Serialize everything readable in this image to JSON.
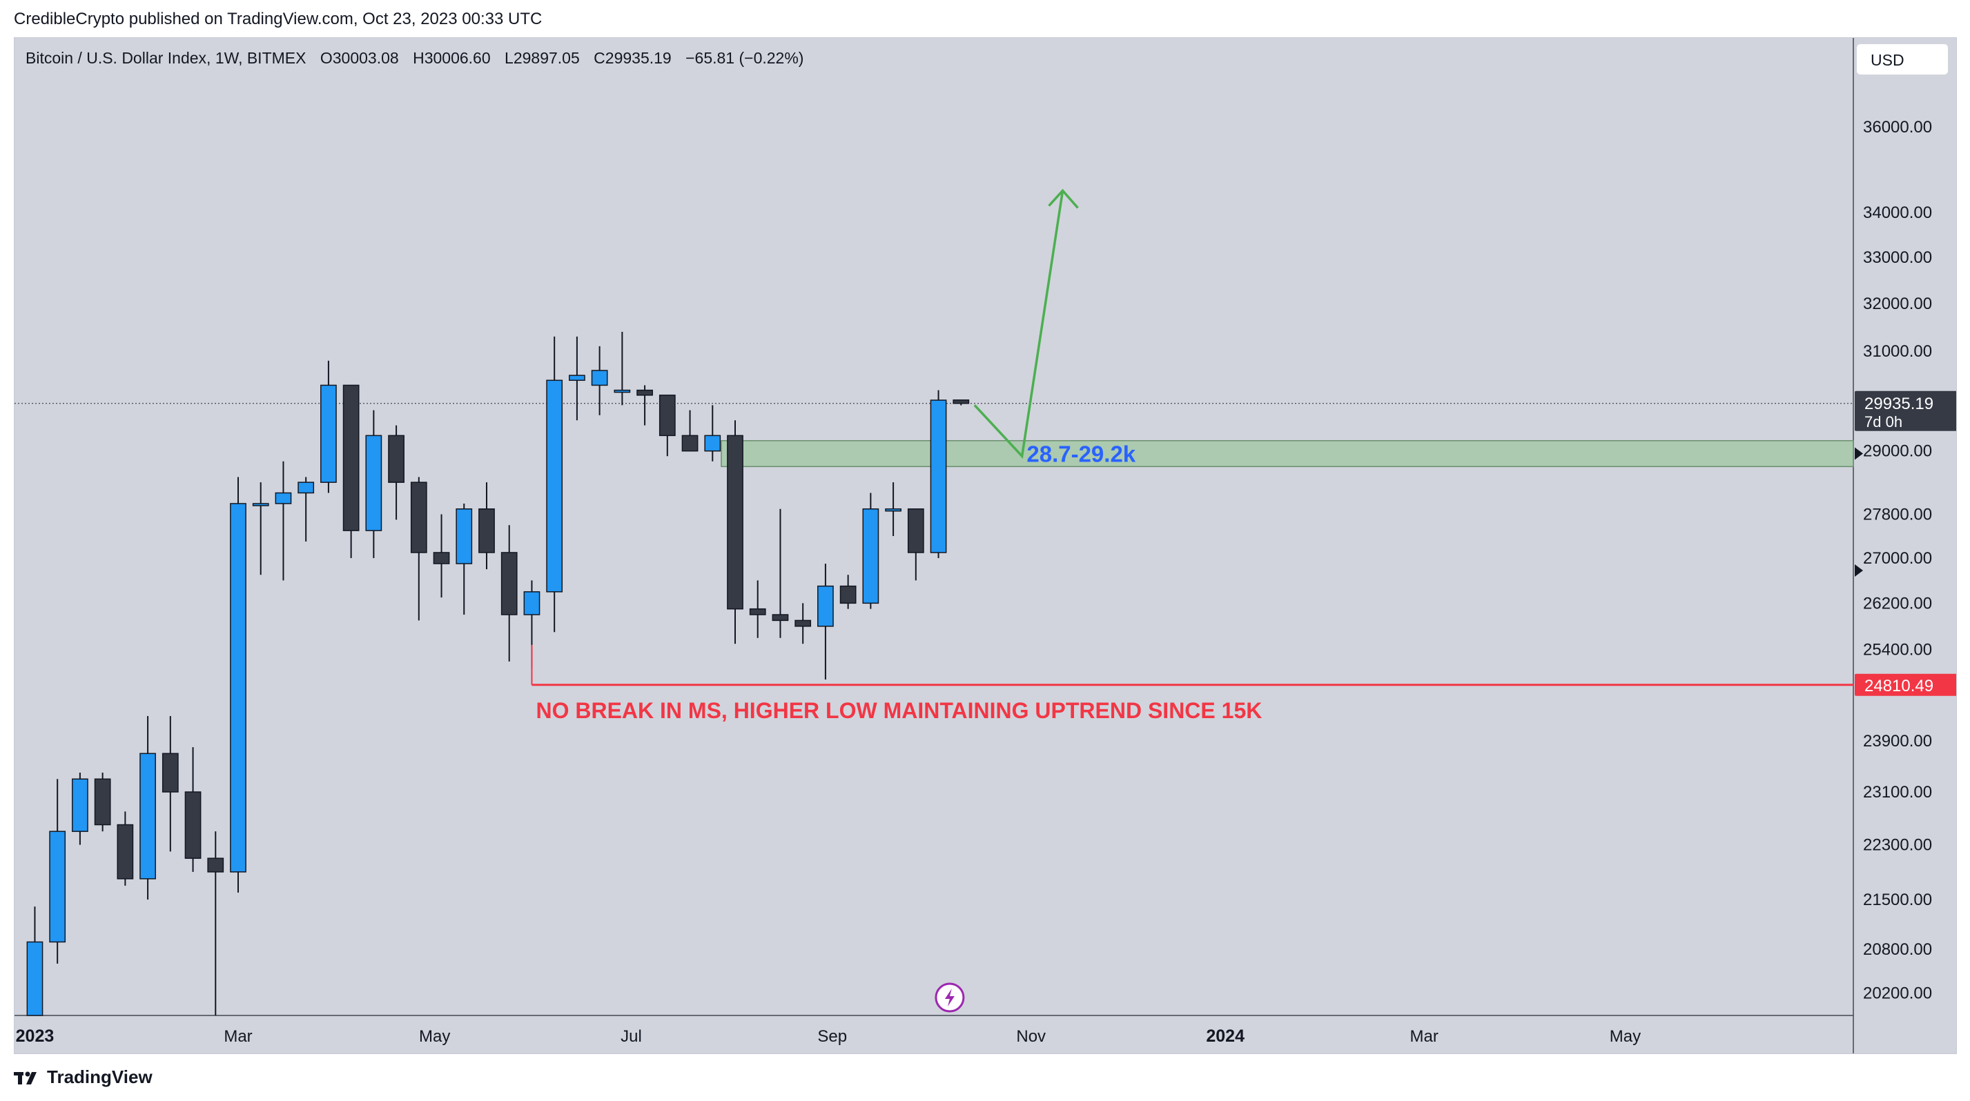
{
  "header": {
    "publish_line": "CredibleCrypto published on TradingView.com, Oct 23, 2023 00:33 UTC"
  },
  "legend": {
    "symbol": "Bitcoin / U.S. Dollar Index, 1W, BITMEX",
    "o_label": "O",
    "o_value": "30003.08",
    "h_label": "H",
    "h_value": "30006.60",
    "l_label": "L",
    "l_value": "29897.05",
    "c_label": "C",
    "c_value": "29935.19",
    "change": "−65.81 (−0.22%)"
  },
  "currency": "USD",
  "footer": {
    "brand": "TradingView"
  },
  "colors": {
    "up": "#2196f3",
    "down": "#363a45",
    "zone": "#a5c8a8",
    "zone_border": "#6b8f6e",
    "arrow": "#4caf50",
    "support": "#f23645",
    "zone_text": "#2962ff"
  },
  "chart_data": {
    "type": "candlestick",
    "timeframe": "1W",
    "scale": "log",
    "y_ticks": [
      36000,
      34000,
      33000,
      32000,
      31000,
      29000,
      27800,
      27000,
      26200,
      25400,
      23900,
      23100,
      22300,
      21500,
      20800,
      20200
    ],
    "y_tick_labels": [
      "36000.00",
      "34000.00",
      "33000.00",
      "32000.00",
      "31000.00",
      "29000.00",
      "27800.00",
      "27000.00",
      "26200.00",
      "25400.00",
      "23900.00",
      "23100.00",
      "22300.00",
      "21500.00",
      "20800.00",
      "20200.00"
    ],
    "x_ticks": [
      {
        "label": "2023",
        "bold": true,
        "week": 0
      },
      {
        "label": "Mar",
        "week": 9
      },
      {
        "label": "May",
        "week": 17.7
      },
      {
        "label": "Jul",
        "week": 26.4
      },
      {
        "label": "Sep",
        "week": 35.3
      },
      {
        "label": "Nov",
        "week": 44.1
      },
      {
        "label": "2024",
        "bold": true,
        "week": 52.7
      },
      {
        "label": "Mar",
        "week": 61.5
      },
      {
        "label": "May",
        "week": 70.4
      }
    ],
    "candles": [
      [
        19800,
        21400,
        19700,
        20900
      ],
      [
        20900,
        23300,
        20600,
        22500
      ],
      [
        22500,
        23400,
        22300,
        23300
      ],
      [
        23300,
        23400,
        22500,
        22600
      ],
      [
        22600,
        22800,
        21700,
        21800
      ],
      [
        21800,
        24300,
        21500,
        23700
      ],
      [
        23700,
        24300,
        22200,
        23100
      ],
      [
        23100,
        23800,
        21900,
        22100
      ],
      [
        22100,
        22500,
        19600,
        21900
      ],
      [
        21900,
        28500,
        21600,
        28000
      ],
      [
        28000,
        28400,
        26700,
        28000
      ],
      [
        28000,
        28800,
        26600,
        28200
      ],
      [
        28200,
        28500,
        27300,
        28400
      ],
      [
        28400,
        30800,
        28200,
        30300
      ],
      [
        30300,
        30300,
        27000,
        27500
      ],
      [
        27500,
        29800,
        27000,
        29300
      ],
      [
        29300,
        29500,
        27700,
        28400
      ],
      [
        28400,
        28500,
        25900,
        27100
      ],
      [
        27100,
        27800,
        26300,
        26900
      ],
      [
        26900,
        28000,
        26000,
        27900
      ],
      [
        27900,
        28400,
        26800,
        27100
      ],
      [
        27100,
        27600,
        25200,
        26000
      ],
      [
        26000,
        26600,
        25100,
        26400
      ],
      [
        26400,
        31300,
        25700,
        30400
      ],
      [
        30400,
        31300,
        29600,
        30500
      ],
      [
        30300,
        31100,
        29700,
        30600
      ],
      [
        30200,
        31400,
        29900,
        30200
      ],
      [
        30200,
        30300,
        29500,
        30100
      ],
      [
        30100,
        30100,
        28900,
        29300
      ],
      [
        29300,
        29800,
        29100,
        29000
      ],
      [
        29000,
        29900,
        28800,
        29300
      ],
      [
        29300,
        29600,
        25500,
        26100
      ],
      [
        26100,
        26600,
        25600,
        26000
      ],
      [
        26000,
        27900,
        25600,
        25900
      ],
      [
        25900,
        26200,
        25500,
        25800
      ],
      [
        25800,
        26900,
        24900,
        26500
      ],
      [
        26500,
        26700,
        26100,
        26200
      ],
      [
        26200,
        28200,
        26100,
        27900
      ],
      [
        27900,
        28400,
        27400,
        27900
      ],
      [
        27900,
        27900,
        26600,
        27100
      ],
      [
        27100,
        30200,
        27000,
        30000
      ],
      [
        30003.08,
        30006.6,
        29897.05,
        29935.19
      ]
    ],
    "last_price": {
      "value": 29935.19,
      "label": "29935.19",
      "countdown": "7d 0h"
    },
    "support": {
      "value": 24810.49,
      "label": "24810.49",
      "from_week": 22
    },
    "zone": {
      "low": 28700,
      "high": 29200,
      "from_week": 31,
      "label": "28.7-29.2k"
    },
    "annotation": "NO BREAK IN MS, HIGHER LOW MAINTAINING UPTREND SINCE 15K",
    "projection": [
      {
        "week": 41.6,
        "price": 29900
      },
      {
        "week": 43.7,
        "price": 28900
      },
      {
        "week": 45.5,
        "price": 34500
      }
    ],
    "x_range_weeks": [
      -0.9,
      80.5
    ],
    "y_range": [
      19900,
      38200
    ]
  }
}
